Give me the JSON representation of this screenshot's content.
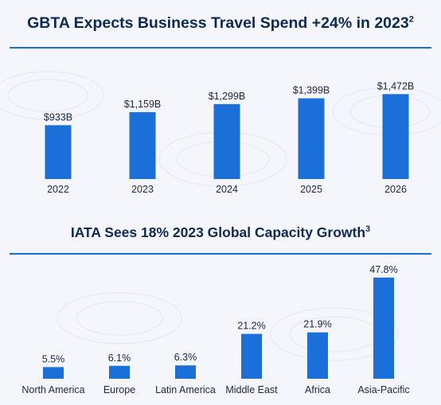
{
  "colors": {
    "bar": "#1a6fd8",
    "title": "#0d2a55",
    "rule": "#1b6fd1",
    "background": "#f4f6fb"
  },
  "charts": {
    "gbta": {
      "title": "GBTA Expects Business Travel Spend +24% in 2023",
      "footnote": "2"
    },
    "iata": {
      "title": "IATA Sees 18% 2023 Global Capacity Growth",
      "footnote": "3"
    }
  },
  "chart_data": [
    {
      "type": "bar",
      "title": "GBTA Expects Business Travel Spend +24% in 2023",
      "categories": [
        "2022",
        "2023",
        "2024",
        "2025",
        "2026"
      ],
      "values": [
        933,
        1159,
        1299,
        1399,
        1472
      ],
      "labels": [
        "$933B",
        "$1,159B",
        "$1,299B",
        "$1,399B",
        "$1,472B"
      ],
      "ylim": [
        0,
        1600
      ],
      "grid": false,
      "legend": "none"
    },
    {
      "type": "bar",
      "title": "IATA Sees 18% 2023 Global Capacity Growth",
      "categories": [
        "North America",
        "Europe",
        "Latin America",
        "Middle East",
        "Africa",
        "Asia-Pacific"
      ],
      "values": [
        5.5,
        6.1,
        6.3,
        21.2,
        21.9,
        47.8
      ],
      "labels": [
        "5.5%",
        "6.1%",
        "6.3%",
        "21.2%",
        "21.9%",
        "47.8%"
      ],
      "ylim": [
        0,
        50
      ],
      "grid": false,
      "legend": "none"
    }
  ]
}
